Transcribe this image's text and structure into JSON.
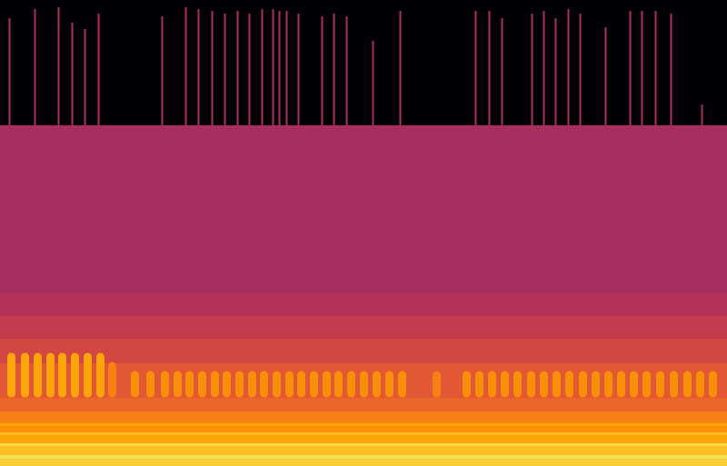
{
  "chart_data": {
    "type": "spectrogram",
    "tick_labels": false,
    "color": "inferno",
    "xlim": [
      0,
      800
    ],
    "ylim": [
      0,
      513
    ],
    "zlim": [
      0,
      100
    ],
    "bands": [
      {
        "from": 0,
        "to": 8,
        "value": 88
      },
      {
        "from": 8,
        "to": 12,
        "value": 92
      },
      {
        "from": 12,
        "to": 22,
        "value": 85
      },
      {
        "from": 22,
        "to": 25,
        "value": 90
      },
      {
        "from": 25,
        "to": 34,
        "value": 80
      },
      {
        "from": 34,
        "to": 37,
        "value": 84
      },
      {
        "from": 37,
        "to": 44,
        "value": 76
      },
      {
        "from": 44,
        "to": 47,
        "value": 80
      },
      {
        "from": 47,
        "to": 60,
        "value": 72
      },
      {
        "from": 60,
        "to": 75,
        "value": 66
      },
      {
        "from": 75,
        "to": 113,
        "value": 62
      },
      {
        "from": 113,
        "to": 140,
        "value": 57
      },
      {
        "from": 140,
        "to": 165,
        "value": 52
      },
      {
        "from": 165,
        "to": 190,
        "value": 48
      },
      {
        "from": 190,
        "to": 375,
        "value": 45
      },
      {
        "from": 375,
        "to": 513,
        "value": 0
      }
    ],
    "clicks": {
      "f_low": 375,
      "events": [
        {
          "t": 10,
          "f_high": 493,
          "value": 46
        },
        {
          "t": 38,
          "f_high": 503,
          "value": 46
        },
        {
          "t": 64,
          "f_high": 505,
          "value": 46
        },
        {
          "t": 79,
          "f_high": 488,
          "value": 46
        },
        {
          "t": 93,
          "f_high": 481,
          "value": 46
        },
        {
          "t": 108,
          "f_high": 498,
          "value": 46
        },
        {
          "t": 178,
          "f_high": 495,
          "value": 46
        },
        {
          "t": 204,
          "f_high": 505,
          "value": 46
        },
        {
          "t": 218,
          "f_high": 503,
          "value": 46
        },
        {
          "t": 233,
          "f_high": 501,
          "value": 46
        },
        {
          "t": 247,
          "f_high": 498,
          "value": 46
        },
        {
          "t": 261,
          "f_high": 501,
          "value": 46
        },
        {
          "t": 274,
          "f_high": 498,
          "value": 46
        },
        {
          "t": 288,
          "f_high": 503,
          "value": 46
        },
        {
          "t": 300,
          "f_high": 503,
          "value": 46
        },
        {
          "t": 307,
          "f_high": 501,
          "value": 46
        },
        {
          "t": 315,
          "f_high": 501,
          "value": 46
        },
        {
          "t": 328,
          "f_high": 498,
          "value": 46
        },
        {
          "t": 354,
          "f_high": 495,
          "value": 46
        },
        {
          "t": 367,
          "f_high": 498,
          "value": 46
        },
        {
          "t": 381,
          "f_high": 495,
          "value": 46
        },
        {
          "t": 410,
          "f_high": 468,
          "value": 44
        },
        {
          "t": 440,
          "f_high": 501,
          "value": 46
        },
        {
          "t": 523,
          "f_high": 501,
          "value": 46
        },
        {
          "t": 538,
          "f_high": 501,
          "value": 46
        },
        {
          "t": 552,
          "f_high": 493,
          "value": 46
        },
        {
          "t": 585,
          "f_high": 498,
          "value": 46
        },
        {
          "t": 598,
          "f_high": 501,
          "value": 46
        },
        {
          "t": 611,
          "f_high": 493,
          "value": 46
        },
        {
          "t": 625,
          "f_high": 503,
          "value": 46
        },
        {
          "t": 638,
          "f_high": 498,
          "value": 46
        },
        {
          "t": 666,
          "f_high": 483,
          "value": 46
        },
        {
          "t": 693,
          "f_high": 501,
          "value": 46
        },
        {
          "t": 706,
          "f_high": 501,
          "value": 46
        },
        {
          "t": 721,
          "f_high": 501,
          "value": 46
        },
        {
          "t": 738,
          "f_high": 498,
          "value": 46
        },
        {
          "t": 772,
          "f_high": 398,
          "value": 44
        }
      ]
    },
    "pulses": {
      "f_low": 80,
      "events": [
        {
          "t": 12,
          "f_high": 120,
          "value": 80
        },
        {
          "t": 27,
          "f_high": 120,
          "value": 80
        },
        {
          "t": 41,
          "f_high": 120,
          "value": 80
        },
        {
          "t": 55,
          "f_high": 120,
          "value": 80
        },
        {
          "t": 68,
          "f_high": 120,
          "value": 80
        },
        {
          "t": 82,
          "f_high": 120,
          "value": 80
        },
        {
          "t": 96,
          "f_high": 120,
          "value": 80
        },
        {
          "t": 110,
          "f_high": 120,
          "value": 80
        },
        {
          "t": 123,
          "f_high": 110,
          "value": 72
        },
        {
          "t": 148,
          "f_high": 100,
          "value": 75
        },
        {
          "t": 165,
          "f_high": 100,
          "value": 75
        },
        {
          "t": 181,
          "f_high": 100,
          "value": 75
        },
        {
          "t": 195,
          "f_high": 100,
          "value": 75
        },
        {
          "t": 208,
          "f_high": 100,
          "value": 75
        },
        {
          "t": 222,
          "f_high": 100,
          "value": 75
        },
        {
          "t": 236,
          "f_high": 100,
          "value": 75
        },
        {
          "t": 249,
          "f_high": 100,
          "value": 75
        },
        {
          "t": 263,
          "f_high": 100,
          "value": 75
        },
        {
          "t": 277,
          "f_high": 100,
          "value": 75
        },
        {
          "t": 290,
          "f_high": 100,
          "value": 75
        },
        {
          "t": 304,
          "f_high": 100,
          "value": 75
        },
        {
          "t": 318,
          "f_high": 100,
          "value": 75
        },
        {
          "t": 331,
          "f_high": 100,
          "value": 75
        },
        {
          "t": 345,
          "f_high": 100,
          "value": 75
        },
        {
          "t": 359,
          "f_high": 100,
          "value": 75
        },
        {
          "t": 372,
          "f_high": 100,
          "value": 75
        },
        {
          "t": 386,
          "f_high": 100,
          "value": 75
        },
        {
          "t": 400,
          "f_high": 100,
          "value": 75
        },
        {
          "t": 414,
          "f_high": 100,
          "value": 75
        },
        {
          "t": 428,
          "f_high": 100,
          "value": 75
        },
        {
          "t": 442,
          "f_high": 100,
          "value": 75
        },
        {
          "t": 480,
          "f_high": 100,
          "value": 72
        },
        {
          "t": 513,
          "f_high": 100,
          "value": 75
        },
        {
          "t": 527,
          "f_high": 100,
          "value": 75
        },
        {
          "t": 541,
          "f_high": 100,
          "value": 75
        },
        {
          "t": 555,
          "f_high": 100,
          "value": 75
        },
        {
          "t": 569,
          "f_high": 100,
          "value": 75
        },
        {
          "t": 584,
          "f_high": 100,
          "value": 75
        },
        {
          "t": 598,
          "f_high": 100,
          "value": 75
        },
        {
          "t": 612,
          "f_high": 100,
          "value": 75
        },
        {
          "t": 626,
          "f_high": 100,
          "value": 75
        },
        {
          "t": 641,
          "f_high": 100,
          "value": 75
        },
        {
          "t": 655,
          "f_high": 100,
          "value": 75
        },
        {
          "t": 669,
          "f_high": 100,
          "value": 75
        },
        {
          "t": 683,
          "f_high": 100,
          "value": 75
        },
        {
          "t": 697,
          "f_high": 100,
          "value": 75
        },
        {
          "t": 711,
          "f_high": 100,
          "value": 75
        },
        {
          "t": 726,
          "f_high": 100,
          "value": 75
        },
        {
          "t": 741,
          "f_high": 100,
          "value": 75
        },
        {
          "t": 756,
          "f_high": 100,
          "value": 75
        },
        {
          "t": 770,
          "f_high": 100,
          "value": 75
        },
        {
          "t": 784,
          "f_high": 100,
          "value": 75
        }
      ]
    }
  }
}
